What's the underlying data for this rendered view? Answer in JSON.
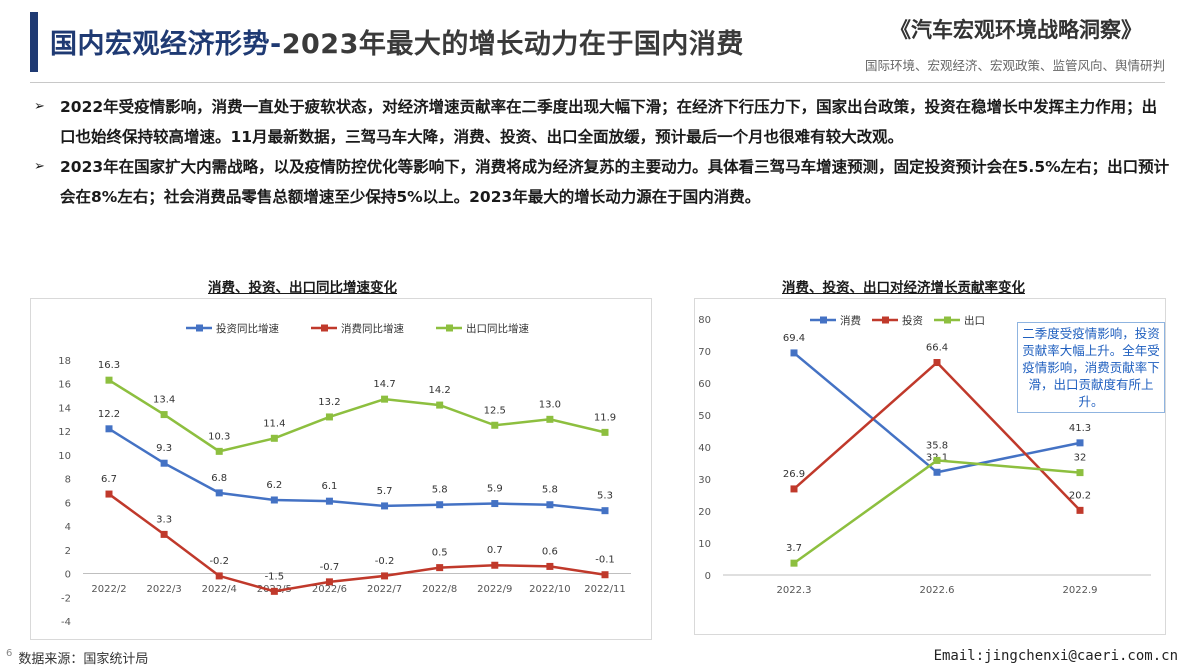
{
  "header": {
    "title_part1": "国内宏观经济形势-",
    "title_part2": "2023年最大的增长动力在于国内消费",
    "brand": "《汽车宏观环境战略洞察》",
    "brand_sub": "国际环境、宏观经济、宏观政策、监管风向、舆情研判"
  },
  "bullets": [
    "2022年受疫情影响，消费一直处于疲软状态，对经济增速贡献率在二季度出现大幅下滑；在经济下行压力下，国家出台政策，投资在稳增长中发挥主力作用；出口也始终保持较高增速。11月最新数据，三驾马车大降，消费、投资、出口全面放缓，预计最后一个月也很难有较大改观。",
    "2023年在国家扩大内需战略，以及疫情防控优化等影响下，消费将成为经济复苏的主要动力。具体看三驾马车增速预测，固定投资预计会在5.5%左右；出口预计会在8%左右；社会消费品零售总额增速至少保持5%以上。2023年最大的增长动力源在于国内消费。"
  ],
  "bullet_marker": "➢",
  "callout": "二季度受疫情影响，投资贡献率大幅上升。全年受疫情影响，消费贡献率下滑，出口贡献度有所上升。",
  "footer": {
    "page_number": "6",
    "source": "数据来源：国家统计局",
    "email": "Email:jingchenxi@caeri.com.cn"
  },
  "colors": {
    "blue": "#4472c4",
    "red": "#c0392b",
    "green": "#8dbf3f",
    "title": "#1f3a73"
  },
  "chart_data": [
    {
      "type": "line",
      "title": "消费、投资、出口同比增速变化",
      "categories": [
        "2022/2",
        "2022/3",
        "2022/4",
        "2022/5",
        "2022/6",
        "2022/7",
        "2022/8",
        "2022/9",
        "2022/10",
        "2022/11"
      ],
      "series": [
        {
          "name": "投资同比增速",
          "color": "#4472c4",
          "values": [
            12.2,
            9.3,
            6.8,
            6.2,
            6.1,
            5.7,
            5.8,
            5.9,
            5.8,
            5.3
          ],
          "labels": [
            "12.2",
            "9.3",
            "6.8",
            "6.2",
            "6.1",
            "5.7",
            "5.8",
            "5.9",
            "5.8",
            "5.3"
          ]
        },
        {
          "name": "消费同比增速",
          "color": "#c0392b",
          "values": [
            6.7,
            3.3,
            -0.2,
            -1.5,
            -0.7,
            -0.2,
            0.5,
            0.7,
            0.6,
            -0.1
          ],
          "labels": [
            "6.7",
            "3.3",
            "-0.2",
            "-1.5",
            "-0.7",
            "-0.2",
            "0.5",
            "0.7",
            "0.6",
            "-0.1"
          ]
        },
        {
          "name": "出口同比增速",
          "color": "#8dbf3f",
          "values": [
            16.3,
            13.4,
            10.3,
            11.4,
            13.2,
            14.7,
            14.2,
            12.5,
            13.0,
            11.9
          ],
          "labels": [
            "16.3",
            "13.4",
            "10.3",
            "11.4",
            "13.2",
            "14.7",
            "14.2",
            "12.5",
            "13.0",
            "11.9"
          ]
        }
      ],
      "ylim": [
        -4,
        18
      ],
      "yticks": [
        -4,
        -2,
        0,
        2,
        4,
        6,
        8,
        10,
        12,
        14,
        16,
        18
      ],
      "ytick_labels": [
        "-4",
        "-2",
        "0",
        "2",
        "4",
        "6",
        "8",
        "10",
        "12",
        "14",
        "16",
        "18"
      ],
      "legend": "top",
      "grid": false
    },
    {
      "type": "line",
      "title": "消费、投资、出口对经济增长贡献率变化",
      "categories": [
        "2022.3",
        "2022.6",
        "2022.9"
      ],
      "series": [
        {
          "name": "消费",
          "color": "#4472c4",
          "values": [
            69.4,
            32.1,
            41.3
          ],
          "labels": [
            "69.4",
            "32.1",
            "41.3"
          ]
        },
        {
          "name": "投资",
          "color": "#c0392b",
          "values": [
            26.9,
            66.4,
            20.2
          ],
          "labels": [
            "26.9",
            "66.4",
            "20.2"
          ]
        },
        {
          "name": "出口",
          "color": "#8dbf3f",
          "values": [
            3.7,
            35.8,
            32
          ],
          "labels": [
            "3.7",
            "35.8",
            "32"
          ]
        }
      ],
      "ylim": [
        0,
        80
      ],
      "yticks": [
        0,
        10,
        20,
        30,
        40,
        50,
        60,
        70,
        80
      ],
      "ytick_labels": [
        "0",
        "10",
        "20",
        "30",
        "40",
        "50",
        "60",
        "70",
        "80"
      ],
      "legend": "top-left",
      "grid": false
    }
  ]
}
